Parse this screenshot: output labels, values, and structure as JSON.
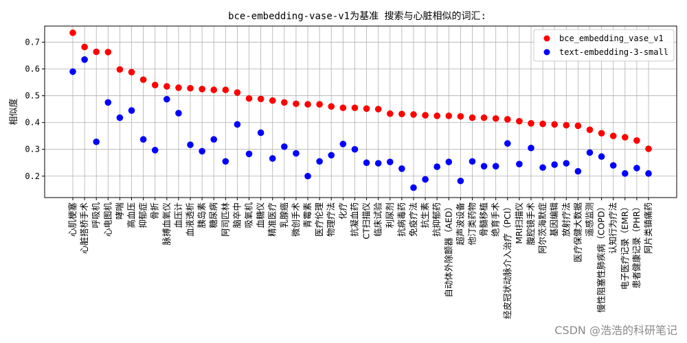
{
  "chart_data": {
    "type": "scatter",
    "title": "bce-embedding-vase-v1为基准 搜索与心脏相似的词汇:",
    "xlabel": "",
    "ylabel": "相似度",
    "ylim": [
      0.12,
      0.76
    ],
    "yticks": [
      0.2,
      0.3,
      0.4,
      0.5,
      0.6,
      0.7
    ],
    "ytick_labels": [
      "0.2",
      "0.3",
      "0.4",
      "0.5",
      "0.6",
      "0.7"
    ],
    "grid": true,
    "legend_position": "top-right",
    "categories": [
      "心肌梗塞",
      "心脏搭桥手术",
      "呼吸机",
      "心电图机",
      "哮喘",
      "高血压",
      "抑郁症",
      "骨折",
      "脉搏血氧仪",
      "血压计",
      "血液透析",
      "胰岛素",
      "糖尿病",
      "阿司匹林",
      "脑卒中",
      "吸氧机",
      "血糖仪",
      "精准医疗",
      "乳腺癌",
      "微创手术",
      "青霉素",
      "医疗伦理",
      "物理疗法",
      "化疗",
      "抗凝血药",
      "CT扫描仪",
      "临床试验",
      "利尿剂",
      "抗病毒药",
      "免疫疗法",
      "抗生素",
      "抗抑郁药",
      "自动体外除颤器（AED）",
      "超声波设备",
      "他汀类药物",
      "骨髓移植",
      "绝育手术",
      "经皮冠状动脉介入治疗（PCI）",
      "MRI扫描仪",
      "腹腔镜手术",
      "阿尔茨海默症",
      "基因编辑",
      "放射疗法",
      "医疗保健大数据",
      "遥感监测",
      "慢性阻塞性肺疾病（COPD）",
      "认知行为疗法",
      "电子医疗记录（EMR）",
      "患者健康记录（PHR）",
      "阿片类镇痛药"
    ],
    "series": [
      {
        "name": "bce_embedding_vase_v1",
        "color": "#ff0000",
        "values": [
          0.735,
          0.682,
          0.664,
          0.663,
          0.598,
          0.588,
          0.56,
          0.54,
          0.535,
          0.53,
          0.528,
          0.525,
          0.522,
          0.522,
          0.512,
          0.49,
          0.488,
          0.482,
          0.475,
          0.47,
          0.468,
          0.468,
          0.46,
          0.455,
          0.455,
          0.452,
          0.45,
          0.433,
          0.432,
          0.43,
          0.427,
          0.425,
          0.425,
          0.423,
          0.418,
          0.418,
          0.415,
          0.412,
          0.405,
          0.397,
          0.395,
          0.393,
          0.39,
          0.388,
          0.373,
          0.36,
          0.35,
          0.345,
          0.333,
          0.302
        ]
      },
      {
        "name": "text-embedding-3-small",
        "color": "#0000ff",
        "values": [
          0.59,
          0.635,
          0.328,
          0.475,
          0.418,
          0.445,
          0.337,
          0.297,
          0.487,
          0.435,
          0.317,
          0.293,
          0.337,
          0.255,
          0.393,
          0.283,
          0.362,
          0.266,
          0.31,
          0.285,
          0.2,
          0.255,
          0.278,
          0.32,
          0.3,
          0.25,
          0.248,
          0.253,
          0.228,
          0.157,
          0.188,
          0.235,
          0.253,
          0.182,
          0.255,
          0.237,
          0.237,
          0.322,
          0.245,
          0.305,
          0.232,
          0.243,
          0.248,
          0.218,
          0.288,
          0.273,
          0.24,
          0.21,
          0.23,
          0.21
        ]
      }
    ]
  },
  "watermark": "CSDN @浩浩的科研笔记"
}
